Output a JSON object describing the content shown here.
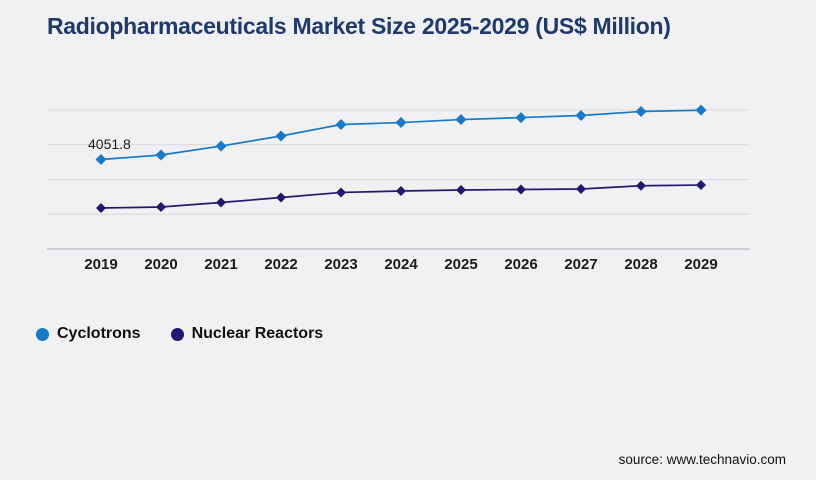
{
  "page": {
    "background": "#f1f1f4"
  },
  "header": {
    "title": "Radiopharmaceuticals Market Size 2025-2029 (US$ Million)",
    "title_color": "#1e3a6d"
  },
  "source": {
    "text": "source: www.technavio.com"
  },
  "chart_data": {
    "type": "line",
    "title": "Radiopharmaceuticals Market Size 2025-2029 (US$ Million)",
    "categories": [
      "2019",
      "2020",
      "2021",
      "2022",
      "2023",
      "2024",
      "2025",
      "2026",
      "2027",
      "2028",
      "2029"
    ],
    "series": [
      {
        "name": "Cyclotrons",
        "color": "#1779c9",
        "marker": "diamond",
        "values": [
          4051.8,
          4255,
          4660,
          5115,
          5635,
          5725,
          5860,
          5950,
          6045,
          6225,
          6285
        ]
      },
      {
        "name": "Nuclear Reactors",
        "color": "#201a6e",
        "marker": "diamond",
        "values": [
          1855,
          1900,
          2105,
          2330,
          2560,
          2625,
          2670,
          2695,
          2715,
          2865,
          2895
        ]
      }
    ],
    "data_labels": [
      {
        "series": "Cyclotrons",
        "category": "2019",
        "text": "4051.8"
      }
    ],
    "xlabel": "",
    "ylabel": "",
    "ylim": [
      0,
      6900
    ],
    "y_axis_tick_labels_visible": false,
    "grid": true,
    "gridline_count": 5,
    "gridline_color": "#d9d9dd",
    "axis_line_color": "#c3c3c9",
    "legend_position": "bottom-left"
  }
}
